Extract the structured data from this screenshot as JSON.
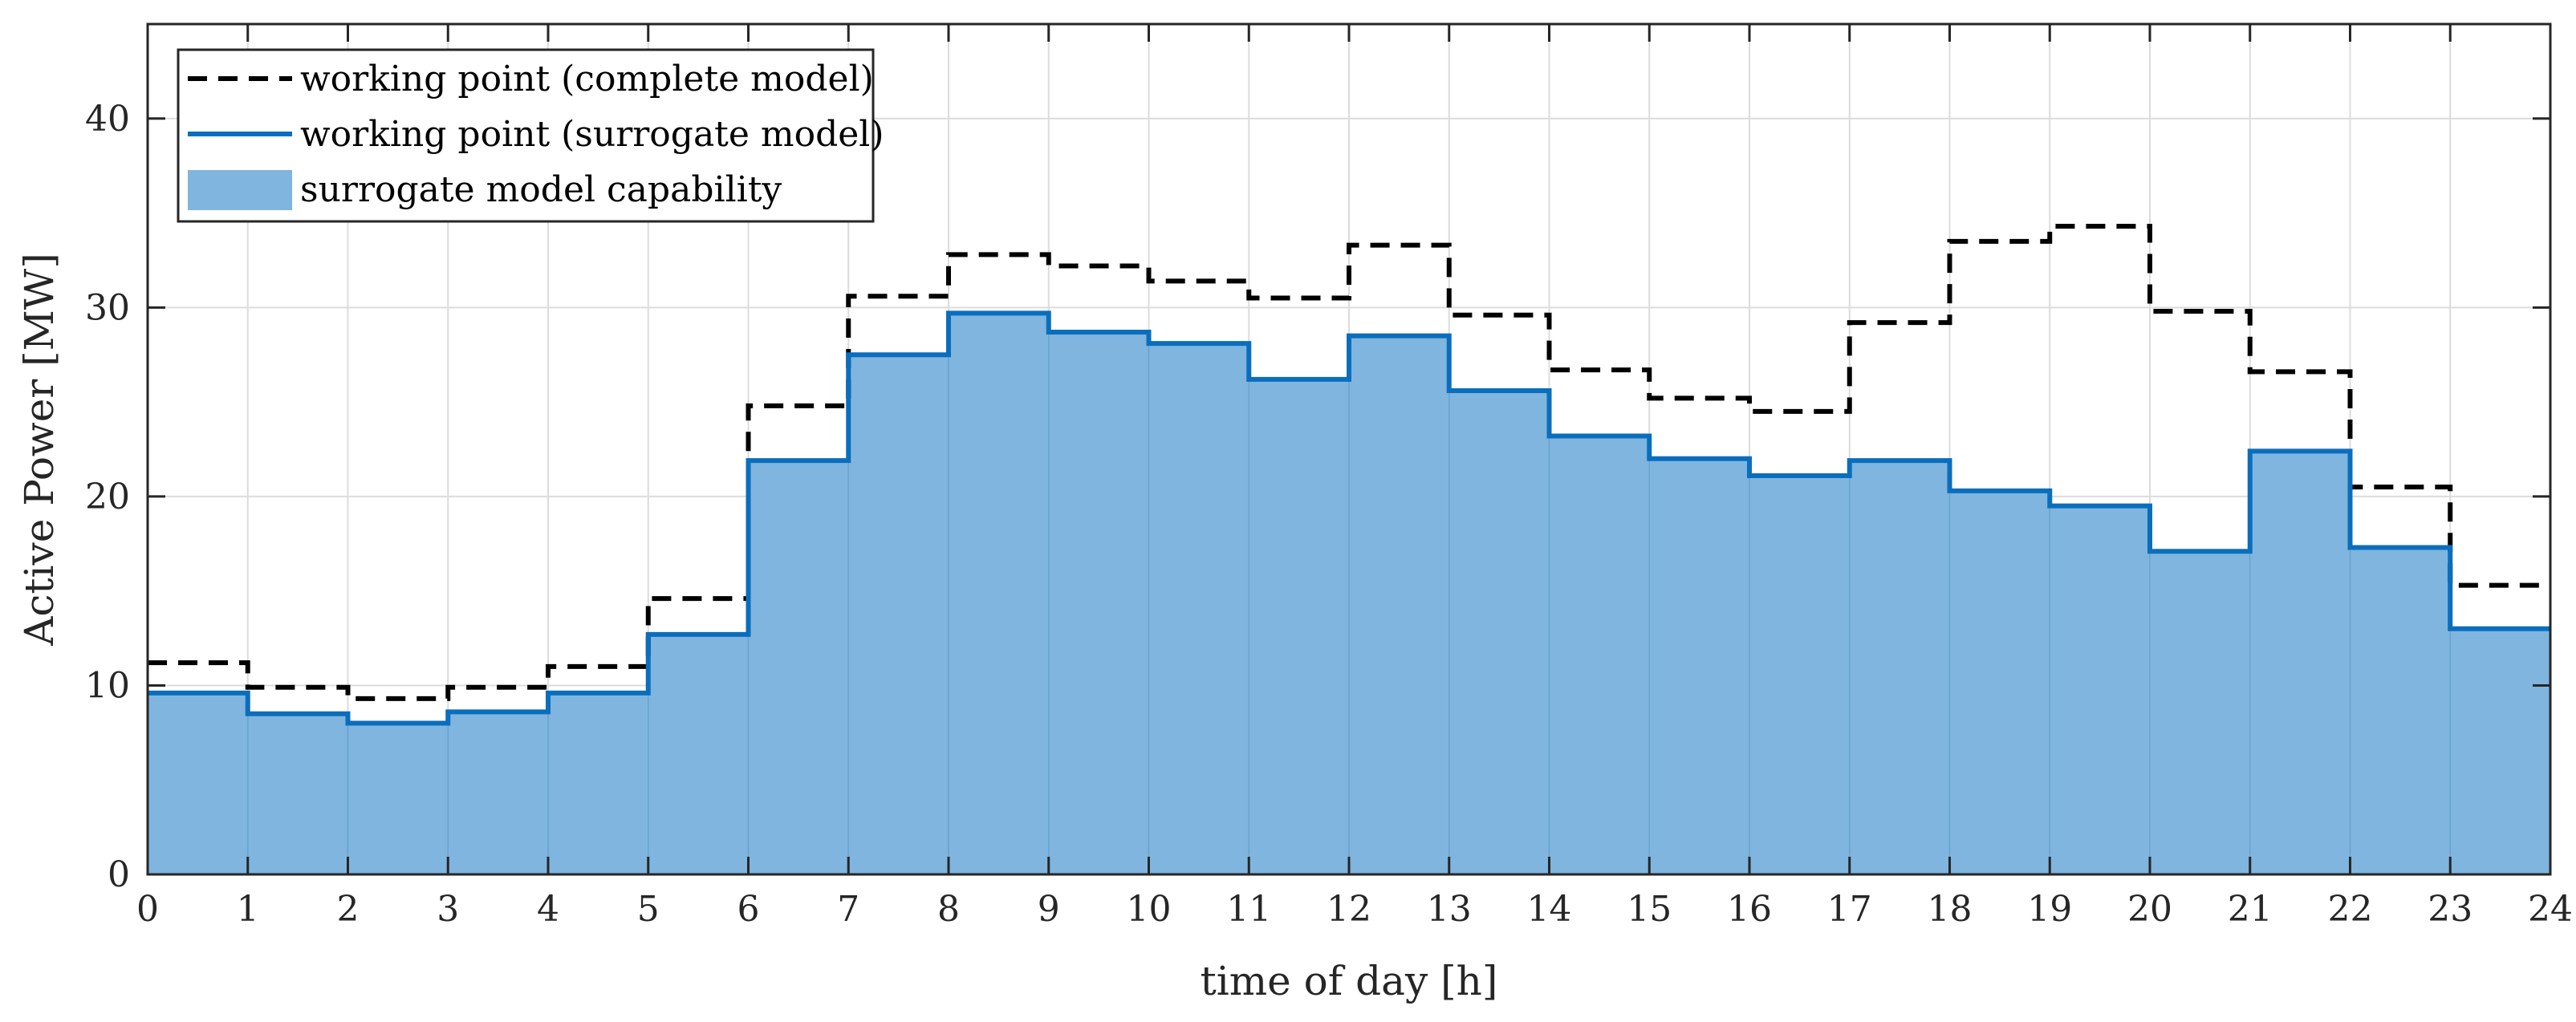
{
  "chart_data": {
    "type": "area",
    "xlabel": "time of day [h]",
    "ylabel": "Active Power [MW]",
    "xlim": [
      0,
      24
    ],
    "ylim": [
      0,
      45
    ],
    "xticks": [
      0,
      1,
      2,
      3,
      4,
      5,
      6,
      7,
      8,
      9,
      10,
      11,
      12,
      13,
      14,
      15,
      16,
      17,
      18,
      19,
      20,
      21,
      22,
      23,
      24
    ],
    "yticks": [
      0,
      10,
      20,
      30,
      40
    ],
    "grid": true,
    "legend_location": "top-left",
    "step": true,
    "x": [
      0,
      1,
      2,
      3,
      4,
      5,
      6,
      7,
      8,
      9,
      10,
      11,
      12,
      13,
      14,
      15,
      16,
      17,
      18,
      19,
      20,
      21,
      22,
      23
    ],
    "series": [
      {
        "name": "working point (complete model)",
        "style": "dashed-line",
        "color": "#000000",
        "values": [
          11.2,
          9.9,
          9.3,
          9.9,
          11.0,
          14.6,
          24.8,
          30.6,
          32.8,
          32.2,
          31.4,
          30.5,
          33.3,
          29.6,
          26.7,
          25.2,
          24.5,
          29.2,
          33.5,
          34.3,
          29.8,
          26.6,
          20.5,
          15.3
        ]
      },
      {
        "name": "working point (surrogate model)",
        "style": "solid-line",
        "color": "#0a6ebd",
        "values": [
          9.6,
          8.5,
          8.0,
          8.6,
          9.6,
          12.7,
          21.9,
          27.5,
          29.7,
          28.7,
          28.1,
          26.2,
          28.5,
          25.6,
          23.2,
          22.0,
          21.1,
          21.9,
          20.3,
          19.5,
          17.1,
          22.4,
          17.3,
          13.0
        ]
      },
      {
        "name": "surrogate model capability",
        "style": "filled-area",
        "color": "#7fb5de",
        "values": [
          9.6,
          8.5,
          8.0,
          8.6,
          9.6,
          12.7,
          21.9,
          27.5,
          29.7,
          28.7,
          28.1,
          26.2,
          28.5,
          25.6,
          23.2,
          22.0,
          21.1,
          21.9,
          20.3,
          19.5,
          17.1,
          22.4,
          17.3,
          13.0
        ]
      }
    ]
  }
}
